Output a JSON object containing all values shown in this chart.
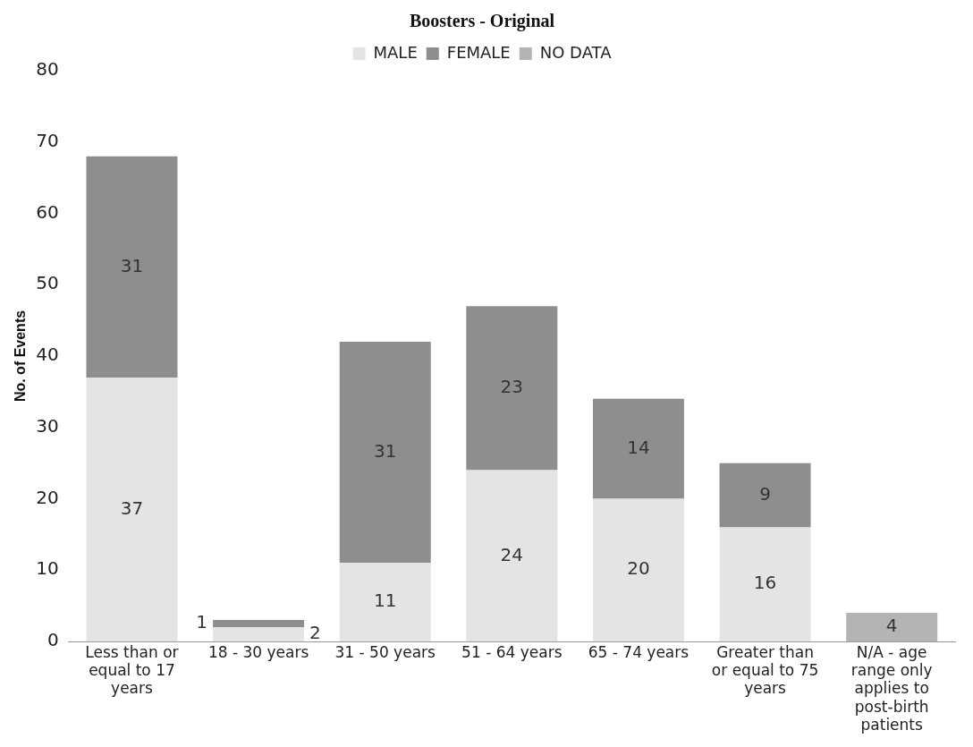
{
  "chart_data": {
    "type": "bar",
    "title": "Boosters - Original",
    "ylabel": "No. of Events",
    "categories": [
      "Less than or equal to 17 years",
      "18 - 30 years",
      "31 - 50 years",
      "51 - 64 years",
      "65 - 74 years",
      "Greater than or equal to 75 years",
      "N/A - age range only applies to post-birth patients"
    ],
    "series": [
      {
        "name": "MALE",
        "color": "#e4e4e4",
        "values": [
          37,
          2,
          11,
          24,
          20,
          16,
          null
        ]
      },
      {
        "name": "FEMALE",
        "color": "#8e8e8e",
        "values": [
          31,
          1,
          31,
          23,
          14,
          9,
          null
        ]
      },
      {
        "name": "NO DATA",
        "color": "#b4b4b4",
        "values": [
          null,
          null,
          null,
          null,
          null,
          null,
          4
        ]
      }
    ],
    "stacked": true,
    "ylim": [
      0,
      80
    ],
    "yticks": [
      0,
      10,
      20,
      30,
      40,
      50,
      60,
      70,
      80
    ],
    "grid": false,
    "legend": "top",
    "data_labels": true
  }
}
